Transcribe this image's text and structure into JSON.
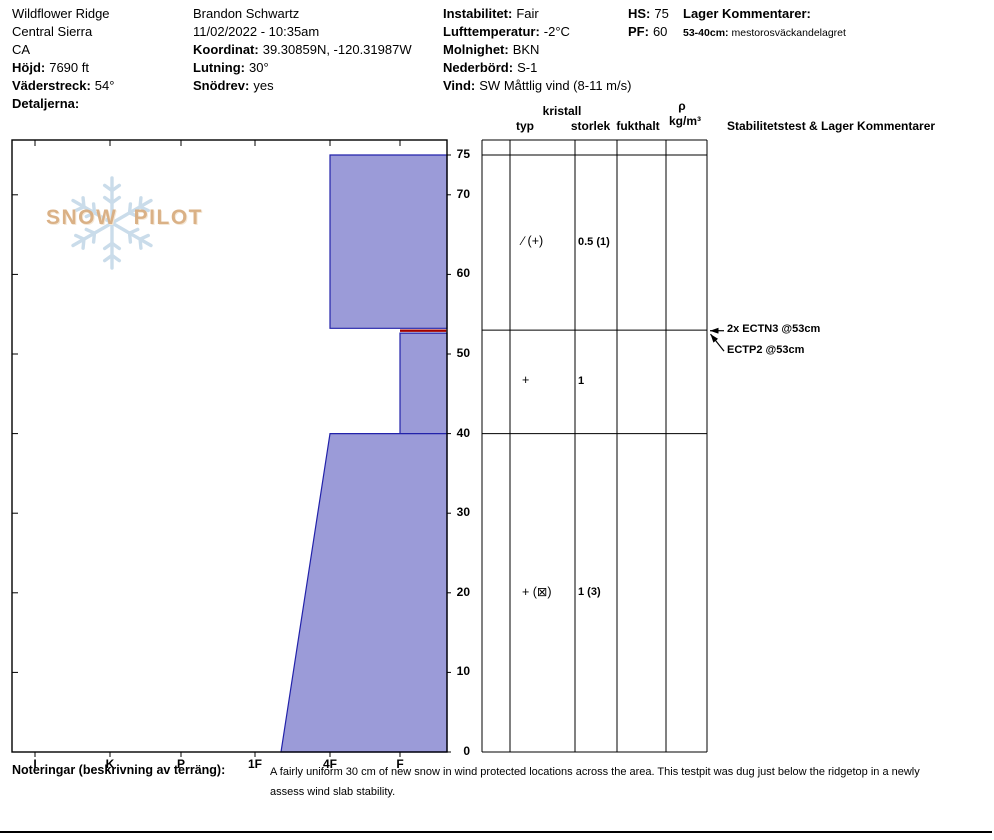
{
  "header": {
    "col1": [
      {
        "label": "",
        "value": "Wildflower Ridge"
      },
      {
        "label": "",
        "value": "Central Sierra"
      },
      {
        "label": "",
        "value": "CA"
      },
      {
        "label": "Höjd:",
        "value": "7690 ft"
      },
      {
        "label": "Väderstreck:",
        "value": "54°"
      },
      {
        "label": "Detaljerna:",
        "value": ""
      }
    ],
    "col2": [
      {
        "label": "",
        "value": "Brandon Schwartz"
      },
      {
        "label": "",
        "value": "11/02/2022 - 10:35am"
      },
      {
        "label": "Koordinat:",
        "value": "39.30859N, -120.31987W"
      },
      {
        "label": "Lutning:",
        "value": "30°"
      },
      {
        "label": "Snödrev:",
        "value": "yes"
      }
    ],
    "col3": [
      {
        "label": "Instabilitet:",
        "value": "Fair"
      },
      {
        "label": "Lufttemperatur:",
        "value": "-2°C"
      },
      {
        "label": "Molnighet:",
        "value": "BKN"
      },
      {
        "label": "Nederbörd:",
        "value": "S-1"
      },
      {
        "label": "Vind:",
        "value": "SW Måttlig vind (8-11 m/s)"
      }
    ],
    "col4": [
      {
        "label": "HS:",
        "value": "75"
      },
      {
        "label": "PF:",
        "value": "60"
      }
    ],
    "layer_comments_title": "Lager Kommentarer:",
    "layer_comment_range": "53-40cm:",
    "layer_comment_text": "mestorosväckandelagret"
  },
  "table_headers": {
    "kristall": "kristall",
    "typ": "typ",
    "storlek": "storlek",
    "fukthalt": "fukthalt",
    "rho": "ρ",
    "rho_unit": "kg/m³",
    "stability": "Stabilitetstest & Lager Kommentarer"
  },
  "logo_text": "SNOW PILOT",
  "chart_data": {
    "type": "snow-profile",
    "depth_axis": {
      "unit": "cm",
      "ticks": [
        75,
        70,
        60,
        50,
        40,
        30,
        20,
        10,
        0
      ],
      "surface_cm": 75,
      "base_cm": 0
    },
    "hardness_axis": {
      "categories": [
        "I",
        "K",
        "P",
        "1F",
        "4F",
        "F"
      ]
    },
    "layers": [
      {
        "from_cm": 75,
        "to_cm": 53,
        "hardness_top": "4F",
        "hardness_bottom": "4F",
        "grain_type": "∕ (+)",
        "grain_size": "0.5 (1)"
      },
      {
        "from_cm": 53,
        "to_cm": 40,
        "hardness_top": "F",
        "hardness_bottom": "F",
        "grain_type": "+",
        "grain_size": "1"
      },
      {
        "from_cm": 40,
        "to_cm": 0,
        "hardness_top": "4F",
        "hardness_bottom": "1F-4F",
        "grain_type": "+ (⊠)",
        "grain_size": "1 (3)"
      }
    ],
    "failure_interface_cm": 53,
    "total_height_cm": 75,
    "pit_floor_cm": 60,
    "tests": [
      {
        "label": "2x ECTN3 @53cm",
        "depth_cm": 53
      },
      {
        "label": "ECTP2 @53cm",
        "depth_cm": 53
      }
    ]
  },
  "notes": {
    "label": "Noteringar (beskrivning av terräng):",
    "line1": "A fairly uniform 30 cm of new snow in wind protected locations across the area. This testpit was dug just below the ridgetop in a newly",
    "line2": "assess wind slab stability."
  },
  "colors": {
    "layer_fill": "#9b9bd8",
    "layer_border": "#2222aa",
    "failure_line": "#a00000",
    "grid_line": "#000000",
    "snowflake_blue": "#b9d1e4",
    "logo_tan": "#d9ad80"
  }
}
